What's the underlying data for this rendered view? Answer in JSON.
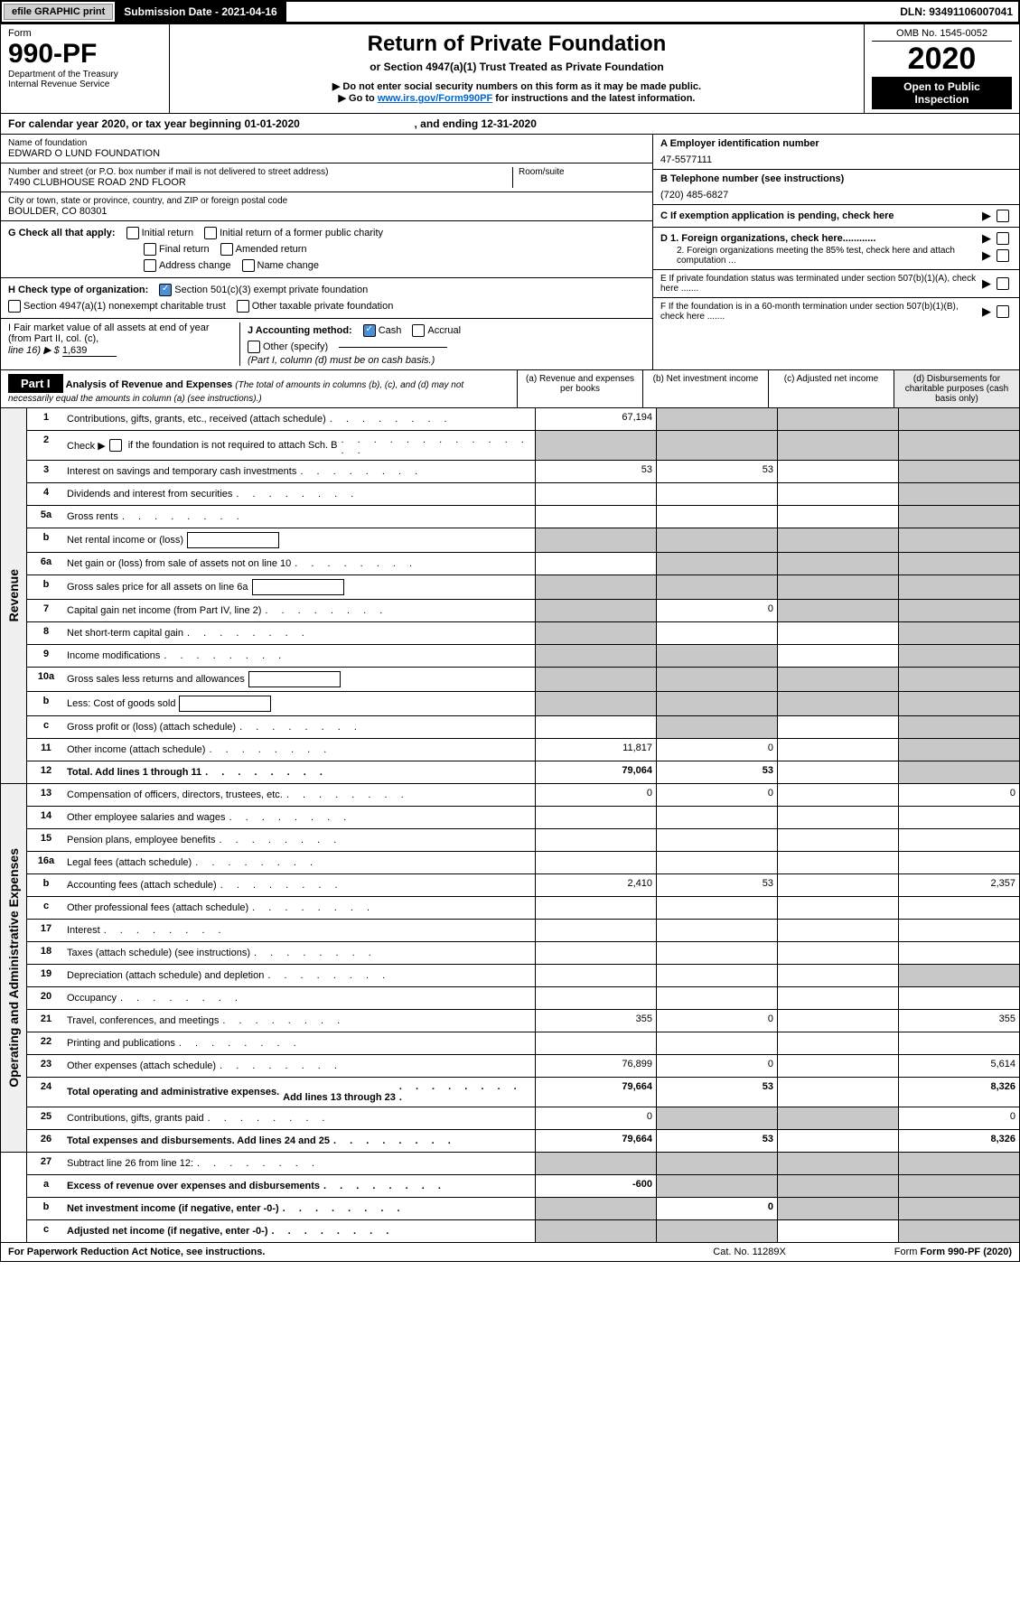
{
  "top": {
    "efile": "efile GRAPHIC print",
    "subdate_lbl": "Submission Date - 2021-04-16",
    "dln": "DLN: 93491106007041"
  },
  "hdr": {
    "form": "Form",
    "f990": "990-PF",
    "dept": "Department of the Treasury",
    "irs": "Internal Revenue Service",
    "title": "Return of Private Foundation",
    "sub": "or Section 4947(a)(1) Trust Treated as Private Foundation",
    "warn": "▶ Do not enter social security numbers on this form as it may be made public.",
    "goto_pre": "▶ Go to ",
    "goto_link": "www.irs.gov/Form990PF",
    "goto_post": " for instructions and the latest information.",
    "omb": "OMB No. 1545-0052",
    "year": "2020",
    "open": "Open to Public Inspection"
  },
  "cal": {
    "text": "For calendar year 2020, or tax year beginning 01-01-2020",
    "end": ", and ending 12-31-2020"
  },
  "id": {
    "name_lbl": "Name of foundation",
    "name": "EDWARD O LUND FOUNDATION",
    "addr_lbl": "Number and street (or P.O. box number if mail is not delivered to street address)",
    "addr": "7490 CLUBHOUSE ROAD 2ND FLOOR",
    "room_lbl": "Room/suite",
    "city_lbl": "City or town, state or province, country, and ZIP or foreign postal code",
    "city": "BOULDER, CO  80301",
    "a_lbl": "A Employer identification number",
    "a_val": "47-5577111",
    "b_lbl": "B Telephone number (see instructions)",
    "b_val": "(720) 485-6827",
    "c_lbl": "C If exemption application is pending, check here",
    "d1": "D 1. Foreign organizations, check here............",
    "d2": "2. Foreign organizations meeting the 85% test, check here and attach computation ...",
    "e_lbl": "E  If private foundation status was terminated under section 507(b)(1)(A), check here .......",
    "f_lbl": "F  If the foundation is in a 60-month termination under section 507(b)(1)(B), check here .......",
    "g_lbl": "G Check all that apply:",
    "g_init": "Initial return",
    "g_initformer": "Initial return of a former public charity",
    "g_final": "Final return",
    "g_amend": "Amended return",
    "g_addr": "Address change",
    "g_name": "Name change",
    "h_lbl": "H Check type of organization:",
    "h_501": "Section 501(c)(3) exempt private foundation",
    "h_4947": "Section 4947(a)(1) nonexempt charitable trust",
    "h_other": "Other taxable private foundation",
    "i_lbl": "I Fair market value of all assets at end of year (from Part II, col. (c),",
    "i_line": "line 16) ▶ $",
    "i_val": "1,639",
    "j_lbl": "J Accounting method:",
    "j_cash": "Cash",
    "j_acc": "Accrual",
    "j_oth": "Other (specify)",
    "j_note": "(Part I, column (d) must be on cash basis.)"
  },
  "p1": {
    "label": "Part I",
    "title": "Analysis of Revenue and Expenses",
    "note": "(The total of amounts in columns (b), (c), and (d) may not necessarily equal the amounts in column (a) (see instructions).)",
    "col_a": "(a)  Revenue and expenses per books",
    "col_b": "(b)  Net investment income",
    "col_c": "(c)  Adjusted net income",
    "col_d": "(d)  Disbursements for charitable purposes (cash basis only)"
  },
  "sides": {
    "rev": "Revenue",
    "exp": "Operating and Administrative Expenses"
  },
  "rows": {
    "r1": {
      "n": "1",
      "d": "Contributions, gifts, grants, etc., received (attach schedule)",
      "a": "67,194"
    },
    "r2": {
      "n": "2",
      "d": "Check ▶",
      "d2": "if the foundation is not required to attach Sch. B"
    },
    "r3": {
      "n": "3",
      "d": "Interest on savings and temporary cash investments",
      "a": "53",
      "b": "53"
    },
    "r4": {
      "n": "4",
      "d": "Dividends and interest from securities"
    },
    "r5a": {
      "n": "5a",
      "d": "Gross rents"
    },
    "r5b": {
      "n": "b",
      "d": "Net rental income or (loss)"
    },
    "r6a": {
      "n": "6a",
      "d": "Net gain or (loss) from sale of assets not on line 10"
    },
    "r6b": {
      "n": "b",
      "d": "Gross sales price for all assets on line 6a"
    },
    "r7": {
      "n": "7",
      "d": "Capital gain net income (from Part IV, line 2)",
      "b": "0"
    },
    "r8": {
      "n": "8",
      "d": "Net short-term capital gain"
    },
    "r9": {
      "n": "9",
      "d": "Income modifications"
    },
    "r10a": {
      "n": "10a",
      "d": "Gross sales less returns and allowances"
    },
    "r10b": {
      "n": "b",
      "d": "Less: Cost of goods sold"
    },
    "r10c": {
      "n": "c",
      "d": "Gross profit or (loss) (attach schedule)"
    },
    "r11": {
      "n": "11",
      "d": "Other income (attach schedule)",
      "a": "11,817",
      "b": "0"
    },
    "r12": {
      "n": "12",
      "d": "Total. Add lines 1 through 11",
      "a": "79,064",
      "b": "53"
    },
    "r13": {
      "n": "13",
      "d": "Compensation of officers, directors, trustees, etc.",
      "a": "0",
      "b": "0",
      "dd": "0"
    },
    "r14": {
      "n": "14",
      "d": "Other employee salaries and wages"
    },
    "r15": {
      "n": "15",
      "d": "Pension plans, employee benefits"
    },
    "r16a": {
      "n": "16a",
      "d": "Legal fees (attach schedule)"
    },
    "r16b": {
      "n": "b",
      "d": "Accounting fees (attach schedule)",
      "a": "2,410",
      "b": "53",
      "dd": "2,357"
    },
    "r16c": {
      "n": "c",
      "d": "Other professional fees (attach schedule)"
    },
    "r17": {
      "n": "17",
      "d": "Interest"
    },
    "r18": {
      "n": "18",
      "d": "Taxes (attach schedule) (see instructions)"
    },
    "r19": {
      "n": "19",
      "d": "Depreciation (attach schedule) and depletion"
    },
    "r20": {
      "n": "20",
      "d": "Occupancy"
    },
    "r21": {
      "n": "21",
      "d": "Travel, conferences, and meetings",
      "a": "355",
      "b": "0",
      "dd": "355"
    },
    "r22": {
      "n": "22",
      "d": "Printing and publications"
    },
    "r23": {
      "n": "23",
      "d": "Other expenses (attach schedule)",
      "a": "76,899",
      "b": "0",
      "dd": "5,614"
    },
    "r24": {
      "n": "24",
      "d": "Total operating and administrative expenses.",
      "d2": "Add lines 13 through 23",
      "a": "79,664",
      "b": "53",
      "dd": "8,326"
    },
    "r25": {
      "n": "25",
      "d": "Contributions, gifts, grants paid",
      "a": "0",
      "dd": "0"
    },
    "r26": {
      "n": "26",
      "d": "Total expenses and disbursements. Add lines 24 and 25",
      "a": "79,664",
      "b": "53",
      "dd": "8,326"
    },
    "r27": {
      "n": "27",
      "d": "Subtract line 26 from line 12:"
    },
    "r27a": {
      "n": "a",
      "d": "Excess of revenue over expenses and disbursements",
      "a": "-600"
    },
    "r27b": {
      "n": "b",
      "d": "Net investment income (if negative, enter -0-)",
      "b": "0"
    },
    "r27c": {
      "n": "c",
      "d": "Adjusted net income (if negative, enter -0-)"
    }
  },
  "foot": {
    "l": "For Paperwork Reduction Act Notice, see instructions.",
    "c": "Cat. No. 11289X",
    "r": "Form 990-PF (2020)"
  }
}
